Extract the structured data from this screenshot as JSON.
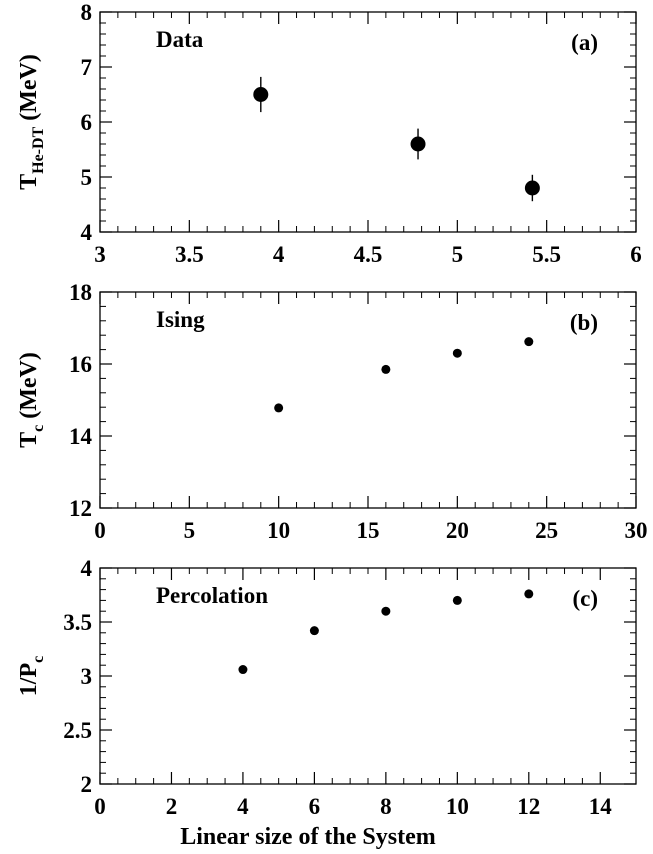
{
  "chart_data": [
    {
      "type": "scatter",
      "panel_label": "Data",
      "panel_tag": "(a)",
      "ylabel": "T",
      "ylabel_sub": "He-DT",
      "ylabel_unit": " (MeV)",
      "xlim": [
        3,
        6
      ],
      "ylim": [
        4,
        8
      ],
      "x_ticks": [
        "3",
        "3.5",
        "4",
        "4.5",
        "5",
        "5.5",
        "6"
      ],
      "y_ticks": [
        "4",
        "5",
        "6",
        "7",
        "8"
      ],
      "series": [
        {
          "x": [
            3.9,
            4.78,
            5.42
          ],
          "y": [
            6.5,
            5.6,
            4.8
          ],
          "yerr": [
            0.32,
            0.28,
            0.24
          ]
        }
      ]
    },
    {
      "type": "scatter",
      "panel_label": "Ising",
      "panel_tag": "(b)",
      "ylabel": "T",
      "ylabel_sub": "c",
      "ylabel_unit": " (MeV)",
      "xlim": [
        0,
        30
      ],
      "ylim": [
        12,
        18
      ],
      "x_ticks": [
        "0",
        "5",
        "10",
        "15",
        "20",
        "25",
        "30"
      ],
      "y_ticks": [
        "12",
        "14",
        "16",
        "18"
      ],
      "series": [
        {
          "x": [
            10,
            16,
            20,
            24
          ],
          "y": [
            14.78,
            15.85,
            16.3,
            16.62
          ]
        }
      ]
    },
    {
      "type": "scatter",
      "panel_label": "Percolation",
      "panel_tag": "(c)",
      "ylabel": "1/P",
      "ylabel_sub": "c",
      "ylabel_unit": "",
      "xlabel": "Linear size of the System",
      "xlim": [
        0,
        15
      ],
      "ylim": [
        2,
        4
      ],
      "x_ticks": [
        "0",
        "2",
        "4",
        "6",
        "8",
        "10",
        "12",
        "14"
      ],
      "y_ticks": [
        "2",
        "2.5",
        "3",
        "3.5",
        "4"
      ],
      "series": [
        {
          "x": [
            4,
            6,
            8,
            10,
            12
          ],
          "y": [
            3.06,
            3.42,
            3.6,
            3.7,
            3.76
          ]
        }
      ]
    }
  ]
}
